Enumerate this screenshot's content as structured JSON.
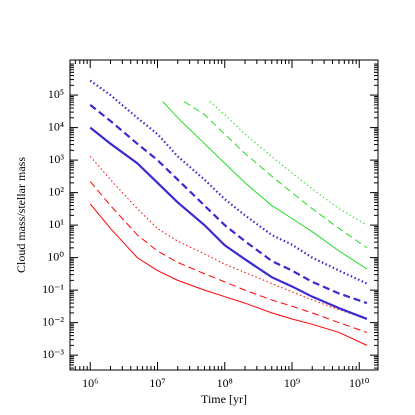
{
  "chart_data": {
    "type": "line",
    "xlabel": "Time [yr]",
    "ylabel": "Cloud mass/stellar mass",
    "xscale": "log",
    "yscale": "log",
    "xlim": [
      500000,
      19000000000
    ],
    "ylim": [
      0.00035,
      1200000
    ],
    "xticks": [
      {
        "value": 1000000,
        "label": "10⁶"
      },
      {
        "value": 10000000,
        "label": "10⁷"
      },
      {
        "value": 100000000,
        "label": "10⁸"
      },
      {
        "value": 1000000000,
        "label": "10⁹"
      },
      {
        "value": 10000000000,
        "label": "10¹⁰"
      }
    ],
    "yticks": [
      {
        "value": 0.001,
        "label": "10⁻³"
      },
      {
        "value": 0.01,
        "label": "10⁻²"
      },
      {
        "value": 0.1,
        "label": "10⁻¹"
      },
      {
        "value": 1,
        "label": "10⁰"
      },
      {
        "value": 10,
        "label": "10¹"
      },
      {
        "value": 100,
        "label": "10²"
      },
      {
        "value": 1000,
        "label": "10³"
      },
      {
        "value": 10000,
        "label": "10⁴"
      },
      {
        "value": 100000,
        "label": "10⁵"
      }
    ],
    "series": [
      {
        "color": "#ff0000",
        "dash": "solid",
        "width": 1,
        "x": [
          1000000,
          2000000,
          5000000,
          10000000,
          20000000,
          50000000,
          100000000,
          200000000,
          500000000,
          1000000000,
          2000000000,
          5000000000,
          13000000000
        ],
        "values": [
          45,
          7.9,
          1,
          0.4,
          0.2,
          0.1,
          0.063,
          0.04,
          0.02,
          0.013,
          0.0089,
          0.005,
          0.002
        ]
      },
      {
        "color": "#ff0000",
        "dash": "dashed",
        "width": 1,
        "x": [
          1000000,
          2000000,
          5000000,
          10000000,
          20000000,
          50000000,
          100000000,
          200000000,
          500000000,
          1000000000,
          2000000000,
          5000000000,
          13000000000
        ],
        "values": [
          220,
          40,
          5,
          1.6,
          0.71,
          0.32,
          0.18,
          0.1,
          0.05,
          0.032,
          0.02,
          0.01,
          0.005
        ]
      },
      {
        "color": "#ff0000",
        "dash": "dotted",
        "width": 1,
        "x": [
          1000000,
          2000000,
          5000000,
          10000000,
          20000000,
          50000000,
          100000000,
          200000000,
          500000000,
          1000000000,
          2000000000,
          5000000000,
          13000000000
        ],
        "values": [
          1300,
          250,
          32,
          7.9,
          3.2,
          1.3,
          0.63,
          0.35,
          0.16,
          0.089,
          0.05,
          0.025,
          0.013
        ]
      },
      {
        "color": "#3a2bd0",
        "dash": "solid",
        "width": 2.2,
        "x": [
          1000000,
          2000000,
          5000000,
          10000000,
          20000000,
          50000000,
          100000000,
          200000000,
          500000000,
          1000000000,
          2000000000,
          5000000000,
          13000000000
        ],
        "values": [
          10000,
          3200,
          800,
          200,
          50,
          10,
          2.4,
          0.89,
          0.25,
          0.13,
          0.063,
          0.028,
          0.013
        ]
      },
      {
        "color": "#3a2bd0",
        "dash": "dashed",
        "width": 2.2,
        "x": [
          1000000,
          2000000,
          5000000,
          10000000,
          20000000,
          50000000,
          100000000,
          200000000,
          500000000,
          1000000000,
          2000000000,
          5000000000,
          13000000000
        ],
        "values": [
          50000,
          16000,
          3200,
          1000,
          250,
          40,
          10,
          3.2,
          0.79,
          0.4,
          0.18,
          0.079,
          0.04
        ]
      },
      {
        "color": "#3a2bd0",
        "dash": "dotted",
        "width": 2.2,
        "x": [
          1000000,
          2000000,
          5000000,
          10000000,
          20000000,
          50000000,
          100000000,
          200000000,
          500000000,
          1000000000,
          2000000000,
          5000000000,
          13000000000
        ],
        "values": [
          280000,
          100000,
          20000,
          6300,
          1300,
          250,
          63,
          20,
          5,
          2.5,
          1,
          0.4,
          0.16
        ]
      },
      {
        "color": "#22dd22",
        "dash": "solid",
        "width": 1,
        "x": [
          12000000,
          20000000,
          50000000,
          100000000,
          200000000,
          500000000,
          1000000000,
          2000000000,
          5000000000,
          13000000000
        ],
        "values": [
          63000,
          20000,
          3200,
          800,
          200,
          40,
          16,
          6.3,
          1.6,
          0.45
        ]
      },
      {
        "color": "#22dd22",
        "dash": "dashed",
        "width": 1,
        "x": [
          25000000,
          50000000,
          100000000,
          200000000,
          500000000,
          1000000000,
          2000000000,
          5000000000,
          13000000000
        ],
        "values": [
          63000,
          25000,
          6300,
          1600,
          320,
          100,
          32,
          7.9,
          2
        ]
      },
      {
        "color": "#22dd22",
        "dash": "dotted",
        "width": 1,
        "x": [
          60000000,
          100000000,
          200000000,
          500000000,
          1000000000,
          2000000000,
          5000000000,
          13000000000
        ],
        "values": [
          63000,
          25000,
          6300,
          1300,
          400,
          130,
          32,
          10
        ]
      }
    ]
  }
}
